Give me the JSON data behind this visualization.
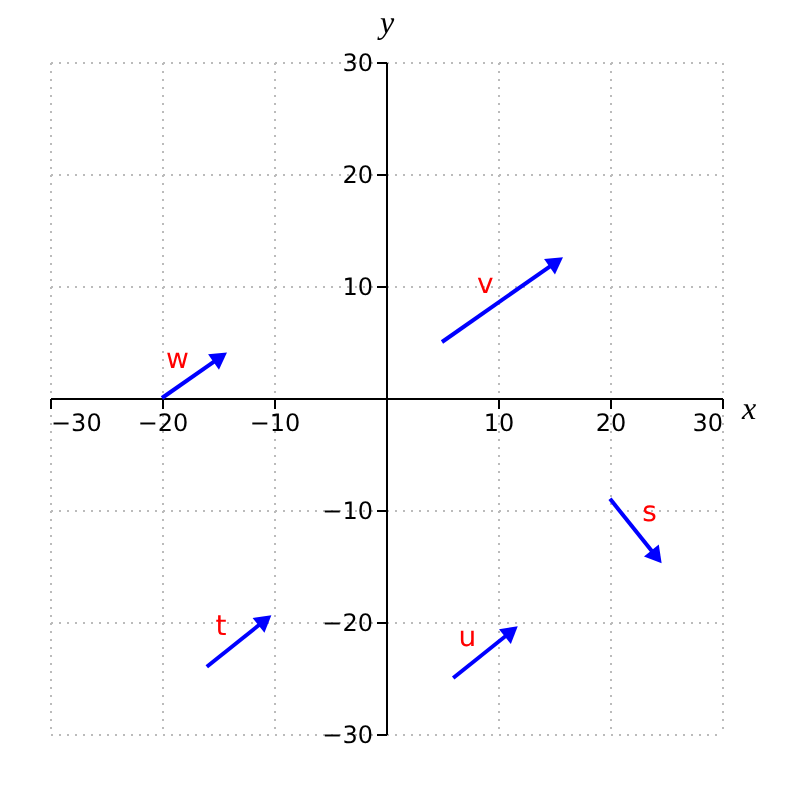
{
  "chart_data": {
    "type": "line",
    "xlabel": "x",
    "ylabel": "y",
    "xlim": [
      -30,
      30
    ],
    "ylim": [
      -30,
      30
    ],
    "xticks": [
      -30,
      -20,
      -10,
      10,
      20,
      30
    ],
    "yticks": [
      -30,
      -20,
      -10,
      10,
      20,
      30
    ],
    "grid": true,
    "legend": false,
    "series": [
      {
        "name": "w",
        "color": "#0000ff",
        "x": [
          -20,
          -15
        ],
        "values": [
          0,
          3.5
        ]
      },
      {
        "name": "v",
        "color": "#0000ff",
        "x": [
          5,
          15
        ],
        "values": [
          5,
          12
        ]
      },
      {
        "name": "t",
        "color": "#0000ff",
        "x": [
          -16,
          -11
        ],
        "values": [
          -24,
          -20
        ]
      },
      {
        "name": "u",
        "color": "#0000ff",
        "x": [
          6,
          11
        ],
        "values": [
          -25,
          -21
        ]
      },
      {
        "name": "s",
        "color": "#0000ff",
        "x": [
          20,
          24
        ],
        "values": [
          -9,
          -14
        ]
      }
    ]
  }
}
